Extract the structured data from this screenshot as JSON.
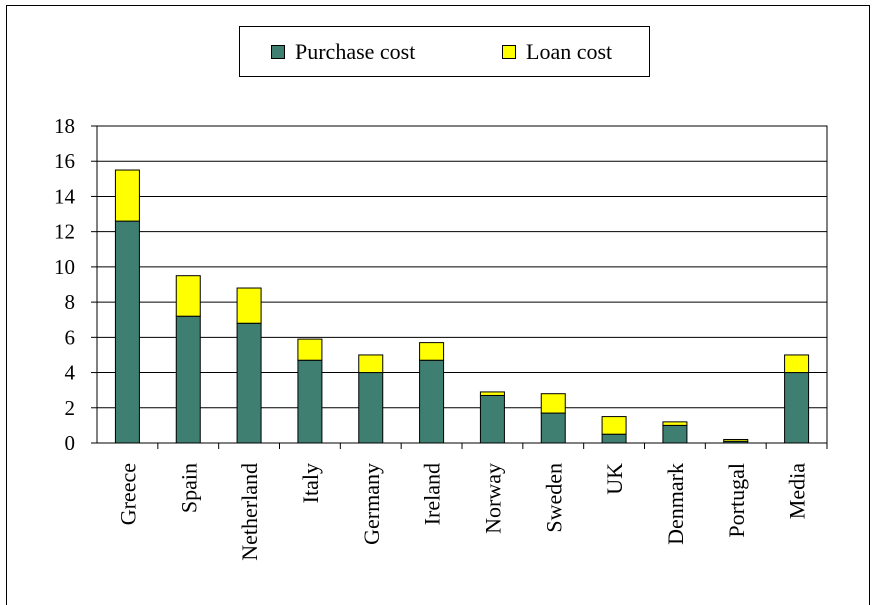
{
  "chart_data": {
    "type": "bar",
    "stacked": true,
    "categories": [
      "Greece",
      "Spain",
      "Netherland",
      "Italy",
      "Germany",
      "Ireland",
      "Norway",
      "Sweden",
      "UK",
      "Denmark",
      "Portugal",
      "Media"
    ],
    "series": [
      {
        "name": "Purchase cost",
        "color": "#3e7f72",
        "values": [
          12.6,
          7.2,
          6.8,
          4.7,
          4.0,
          4.7,
          2.7,
          1.7,
          0.5,
          1.0,
          0.1,
          4.0
        ]
      },
      {
        "name": "Loan cost",
        "color": "#ffff00",
        "values": [
          2.9,
          2.3,
          2.0,
          1.2,
          1.0,
          1.0,
          0.2,
          1.1,
          1.0,
          0.2,
          0.1,
          1.0
        ]
      }
    ],
    "ylim": [
      0,
      18
    ],
    "yticks": [
      0,
      2,
      4,
      6,
      8,
      10,
      12,
      14,
      16,
      18
    ],
    "grid": true,
    "legend_position": "top-center"
  }
}
